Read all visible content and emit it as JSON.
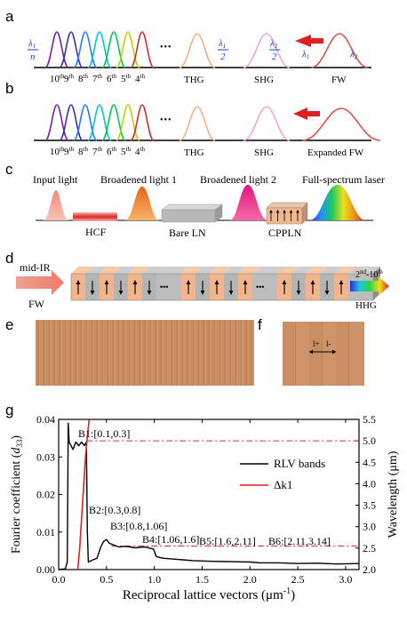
{
  "panel_labels": {
    "a": "a",
    "b": "b",
    "c": "c",
    "d": "d",
    "e": "e",
    "f": "f",
    "g": "g"
  },
  "panel_a": {
    "harmonics": [
      {
        "label": "10",
        "sup": "th",
        "color": "#7b1fa2"
      },
      {
        "label": "9",
        "sup": "th",
        "color": "#3f2fb5"
      },
      {
        "label": "8",
        "sup": "th",
        "color": "#2979ff"
      },
      {
        "label": "7",
        "sup": "th",
        "color": "#00c8d8"
      },
      {
        "label": "6",
        "sup": "th",
        "color": "#00c853"
      },
      {
        "label": "5",
        "sup": "th",
        "color": "#c6d000"
      },
      {
        "label": "4",
        "sup": "th",
        "color": "#d32f2f"
      }
    ],
    "ellipsis": "•••",
    "thg_label": "THG",
    "shg_label": "SHG",
    "fw_label": "FW",
    "lambda1_symbol": "λ",
    "lambda1_sub": "1",
    "n_symbol": "n",
    "two": "2",
    "lambda2_sub": "2",
    "colors": {
      "thg": "#f2b27e",
      "shg": "#f4a6d0",
      "fw": "#e0504a",
      "arrow": "#e02020",
      "lambda_text": "#1a3fd6"
    }
  },
  "panel_b": {
    "thg_label": "THG",
    "shg_label": "SHG",
    "fw_label": "Expanded FW"
  },
  "panel_c": {
    "stage_labels": [
      "Input light",
      "Broadened light 1",
      "Broadened light 2",
      "Full-spectrum laser"
    ],
    "component_labels": [
      "HCF",
      "Bare LN",
      "CPPLN"
    ]
  },
  "panel_d": {
    "input_label": "mid-IR",
    "fw_label": "FW",
    "output_label_main": "2",
    "output_label_sup": "nd",
    "output_label_rest": "-10",
    "output_label_sup2": "th",
    "hhg_label": "HHG",
    "ellipsis": "•••"
  },
  "panel_f": {
    "l_plus": "l+",
    "l_minus": "l-"
  },
  "chart_data": {
    "type": "line",
    "xlabel": "Reciprocal lattice vectors (μm⁻¹)",
    "xlabel_main": "Reciprocal lattice vectors (μm",
    "xlabel_sup": "-1",
    "xlabel_end": ")",
    "ylabel": "Fourier coefficient (d33)",
    "ylabel_main": "Fourier coefficient (",
    "ylabel_var": "d",
    "ylabel_sub": "33",
    "ylabel_end": ")",
    "y2label": "Wavelength (μm)",
    "xlim": [
      0,
      3.14
    ],
    "ylim": [
      0,
      0.04
    ],
    "y2lim": [
      2.0,
      5.5
    ],
    "xticks": [
      "0.0",
      "0.5",
      "1.0",
      "1.5",
      "2.0",
      "2.5",
      "3.0"
    ],
    "xtick_values": [
      0,
      0.5,
      1.0,
      1.5,
      2.0,
      2.5,
      3.0
    ],
    "yticks": [
      "0.00",
      "0.01",
      "0.02",
      "0.03",
      "0.04"
    ],
    "ytick_values": [
      0,
      0.01,
      0.02,
      0.03,
      0.04
    ],
    "y2ticks": [
      "2.0",
      "2.5",
      "3.0",
      "3.5",
      "4.0",
      "4.5",
      "5.0",
      "5.5"
    ],
    "y2tick_values": [
      2.0,
      2.5,
      3.0,
      3.5,
      4.0,
      4.5,
      5.0,
      5.5
    ],
    "legend": [
      "RLV bands",
      "Δk1"
    ],
    "legend_colors": [
      "#000000",
      "#e02020"
    ],
    "band_labels": [
      "B1:[0.1,0.3]",
      "B2:[0.3,0.8]",
      "B3:[0.8,1.06]",
      "B4:[1.06,1.6]",
      "B5:[1.6,2.11]",
      "B6:[2.11,3.14]"
    ],
    "reference_lines_wavelength": [
      5.0,
      2.55
    ],
    "series": [
      {
        "name": "RLV bands",
        "axis": "left",
        "x": [
          0.0,
          0.07,
          0.09,
          0.1,
          0.11,
          0.13,
          0.15,
          0.18,
          0.21,
          0.24,
          0.27,
          0.29,
          0.3,
          0.31,
          0.35,
          0.4,
          0.44,
          0.47,
          0.5,
          0.53,
          0.58,
          0.63,
          0.7,
          0.8,
          0.9,
          0.99,
          1.02,
          1.06,
          1.1,
          1.2,
          1.3,
          1.4,
          1.6,
          1.8,
          2.0,
          2.11,
          2.3,
          2.5,
          2.7,
          2.9,
          3.14
        ],
        "y": [
          0.0,
          0.0002,
          0.002,
          0.039,
          0.034,
          0.033,
          0.032,
          0.034,
          0.033,
          0.034,
          0.033,
          0.034,
          0.01,
          0.002,
          0.0025,
          0.003,
          0.006,
          0.0075,
          0.008,
          0.007,
          0.0065,
          0.006,
          0.0062,
          0.0058,
          0.006,
          0.0055,
          0.0035,
          0.0032,
          0.003,
          0.0028,
          0.0026,
          0.0024,
          0.0022,
          0.0021,
          0.002,
          0.0018,
          0.0018,
          0.0016,
          0.0017,
          0.0015,
          0.0016
        ]
      },
      {
        "name": "Δk1",
        "axis": "right",
        "x": [
          0.2,
          0.22,
          0.24,
          0.26,
          0.28,
          0.3,
          0.32
        ],
        "y": [
          2.0,
          2.5,
          3.2,
          3.9,
          4.6,
          5.1,
          5.5
        ]
      }
    ]
  }
}
